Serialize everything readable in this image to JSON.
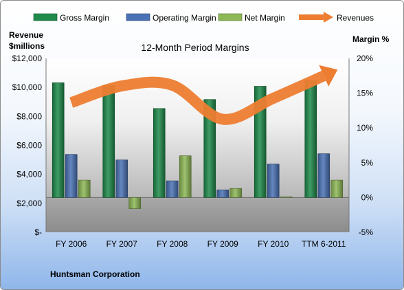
{
  "chart_data": {
    "type": "bar",
    "title": "12-Month Period Margins",
    "categories": [
      "FY 2006",
      "FY 2007",
      "FY 2008",
      "FY 2009",
      "FY 2010",
      "TTM 6-2011"
    ],
    "series": [
      {
        "name": "Gross Margin",
        "axis": "right",
        "color": "#1e8b4a",
        "values": [
          16.5,
          16.1,
          12.8,
          14.1,
          16.0,
          16.8
        ]
      },
      {
        "name": "Operating Margin",
        "axis": "right",
        "color": "#4a72b5",
        "values": [
          6.2,
          5.4,
          2.4,
          1.1,
          4.8,
          6.3
        ]
      },
      {
        "name": "Net Margin",
        "axis": "right",
        "color": "#8db856",
        "values": [
          2.5,
          -1.6,
          6.0,
          1.3,
          0.1,
          2.5
        ]
      },
      {
        "name": "Revenues",
        "axis": "left",
        "type": "line",
        "color": "#ed7d31",
        "values": [
          8950,
          10100,
          10150,
          7800,
          9250,
          10800
        ]
      }
    ],
    "left_axis": {
      "label_line1": "Revenue",
      "label_line2": "$millions",
      "ylim": [
        0,
        12000
      ],
      "ticks": [
        "$-",
        "$2,000",
        "$4,000",
        "$6,000",
        "$8,000",
        "$10,000",
        "$12,000"
      ]
    },
    "right_axis": {
      "label": "Margin %",
      "ylim": [
        -5,
        20
      ],
      "ticks": [
        "-5%",
        "0%",
        "5%",
        "10%",
        "15%",
        "20%"
      ]
    },
    "legend_position": "top",
    "grid": false
  },
  "footer": {
    "company": "Huntsman Corporation"
  }
}
